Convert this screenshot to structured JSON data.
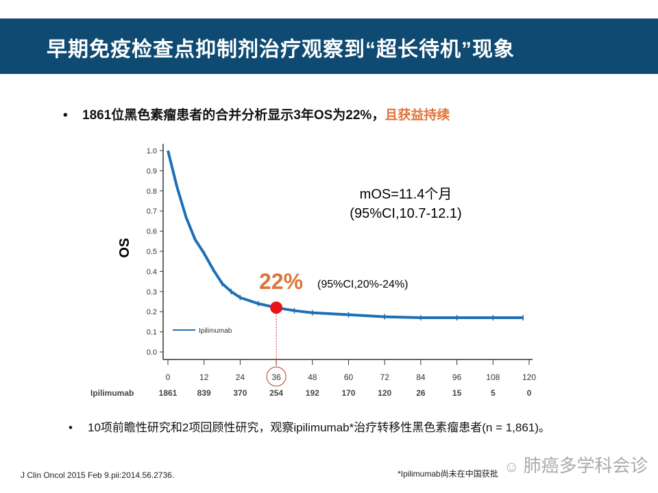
{
  "header": {
    "title": "早期免疫检查点抑制剂治疗观察到“超长待机”现象"
  },
  "bullet1": {
    "text": "1861位黑色素瘤患者的合并分析显示3年OS为22%，",
    "highlight": "且获益持续"
  },
  "bullet2": {
    "text": "10项前瞻性研究和2项回顾性研究，观察ipilimumab*治疗转移性黑色素瘤患者(n = 1,861)。"
  },
  "reference": "J Clin Oncol 2015 Feb 9.pii:2014.56.2736.",
  "footnote": "*Ipilimumab尚未在中国获批",
  "watermark": "肺癌多学科会诊",
  "chart_data": {
    "type": "line",
    "ylabel": "OS",
    "xlabel": "",
    "xlim": [
      0,
      120
    ],
    "ylim": [
      0,
      1.0
    ],
    "xticks": [
      0,
      12,
      24,
      36,
      48,
      60,
      72,
      84,
      96,
      108,
      120
    ],
    "yticks": [
      "0.0",
      "0.1",
      "0.2",
      "0.3",
      "0.4",
      "0.5",
      "0.6",
      "0.7",
      "0.8",
      "0.9",
      "1.0"
    ],
    "legend": {
      "label": "Ipilimumab",
      "placement": "bottom-left"
    },
    "series": [
      {
        "name": "Ipilimumab",
        "color": "#1f6fb5",
        "x": [
          0,
          3,
          6,
          9,
          12,
          15,
          18,
          21,
          24,
          30,
          36,
          42,
          48,
          60,
          72,
          84,
          96,
          108,
          118
        ],
        "y": [
          1.0,
          0.82,
          0.67,
          0.56,
          0.49,
          0.41,
          0.34,
          0.3,
          0.27,
          0.24,
          0.22,
          0.205,
          0.195,
          0.185,
          0.175,
          0.17,
          0.17,
          0.17,
          0.17
        ]
      }
    ],
    "annotations": {
      "mos": "mOS=11.4个月",
      "mos_ci": "(95%CI,10.7-12.1)",
      "highlight": "22%",
      "highlight_ci": "(95%CI,20%-24%)",
      "highlight_x": 36,
      "highlight_y": 0.22
    },
    "risk_table": {
      "label": "Ipilimumab",
      "values": [
        "1861",
        "839",
        "370",
        "254",
        "192",
        "170",
        "120",
        "26",
        "15",
        "5",
        "0"
      ]
    }
  }
}
